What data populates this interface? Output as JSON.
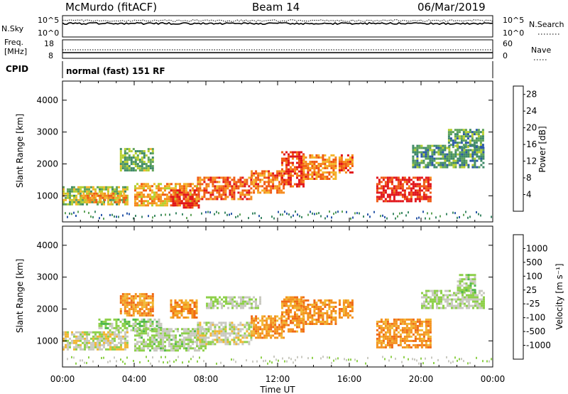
{
  "header": {
    "station": "McMurdo (fitACF)",
    "beam": "Beam 14",
    "date": "06/Mar/2019"
  },
  "noise_panel": {
    "left_label": "N.Sky",
    "right_label": "N.Search",
    "ticks": [
      "10^5",
      "10^0"
    ],
    "right_ticks": [
      "10^5",
      "10^0"
    ]
  },
  "freq_panel": {
    "left_label_1": "Freq.",
    "left_label_2": "[MHz]",
    "left_ticks": [
      "18",
      "8"
    ],
    "right_ticks": [
      "60",
      "0"
    ],
    "right_label": "Nave"
  },
  "cpid_panel": {
    "label": "CPID",
    "text": "normal (fast) 151 RF"
  },
  "power_panel": {
    "ylabel": "Slant Range [km]",
    "yticks": [
      "1000",
      "2000",
      "3000",
      "4000"
    ],
    "colorbar_label": "Power [dB]",
    "colorbar_ticks": [
      "4",
      "8",
      "12",
      "16",
      "20",
      "24",
      "28"
    ],
    "colorbar_colors": [
      "#1a2bdc",
      "#2a57a8",
      "#3f8a68",
      "#5fa35a",
      "#b6cf2e",
      "#f4b52b",
      "#f58a1d",
      "#f05a14",
      "#e1151a"
    ]
  },
  "velocity_panel": {
    "ylabel": "Slant Range [km]",
    "yticks": [
      "1000",
      "2000",
      "3000",
      "4000"
    ],
    "colorbar_label": "Velocity [m s⁻¹]",
    "colorbar_ticks": [
      "1000",
      "500",
      "100",
      "25",
      "-25",
      "-100",
      "-500",
      "-1000"
    ],
    "colorbar_colors": [
      "#2338c4",
      "#2a6da0",
      "#2f8e5c",
      "#4fb84c",
      "#8ed04a",
      "#c9c9c0",
      "#f1b733",
      "#f4921e",
      "#ef6a16",
      "#e2151b"
    ]
  },
  "x_axis": {
    "title": "Time UT",
    "tick_labels": [
      "00:00",
      "04:00",
      "08:00",
      "12:00",
      "16:00",
      "20:00",
      "00:00"
    ]
  },
  "chart_data": [
    {
      "type": "heatmap",
      "title": "Power [dB]",
      "xlabel": "Time UT",
      "ylabel": "Slant Range [km]",
      "xlim_hours": [
        0,
        24
      ],
      "ylim": [
        180,
        4600
      ],
      "value_range": [
        0,
        30
      ],
      "regions": [
        {
          "t": [
            0.0,
            3.6
          ],
          "r": [
            700,
            1300
          ],
          "v": 14
        },
        {
          "t": [
            1.0,
            3.5
          ],
          "r": [
            800,
            1100
          ],
          "v": 20
        },
        {
          "t": [
            3.2,
            5.0
          ],
          "r": [
            1800,
            2500
          ],
          "v": 12
        },
        {
          "t": [
            4.0,
            7.5
          ],
          "r": [
            700,
            1400
          ],
          "v": 20
        },
        {
          "t": [
            6.0,
            7.6
          ],
          "r": [
            600,
            1200
          ],
          "v": 28
        },
        {
          "t": [
            7.5,
            10.5
          ],
          "r": [
            900,
            1600
          ],
          "v": 24
        },
        {
          "t": [
            10.5,
            12.4
          ],
          "r": [
            1100,
            1800
          ],
          "v": 22
        },
        {
          "t": [
            12.2,
            13.5
          ],
          "r": [
            1300,
            2400
          ],
          "v": 26
        },
        {
          "t": [
            13.4,
            15.2
          ],
          "r": [
            1500,
            2300
          ],
          "v": 22
        },
        {
          "t": [
            15.4,
            16.2
          ],
          "r": [
            1700,
            2300
          ],
          "v": 24
        },
        {
          "t": [
            17.5,
            20.5
          ],
          "r": [
            800,
            1600
          ],
          "v": 28
        },
        {
          "t": [
            19.5,
            23.5
          ],
          "r": [
            1900,
            2600
          ],
          "v": 10
        },
        {
          "t": [
            21.5,
            23.5
          ],
          "r": [
            2500,
            3100
          ],
          "v": 10
        }
      ]
    },
    {
      "type": "heatmap",
      "title": "Velocity [m s⁻¹]",
      "xlabel": "Time UT",
      "ylabel": "Slant Range [km]",
      "xlim_hours": [
        0,
        24
      ],
      "ylim": [
        180,
        4600
      ],
      "value_range": [
        -1000,
        1000
      ],
      "regions": [
        {
          "t": [
            0.0,
            3.6
          ],
          "r": [
            700,
            1300
          ],
          "v": -100
        },
        {
          "t": [
            2.0,
            5.5
          ],
          "r": [
            1300,
            1700
          ],
          "v": 100
        },
        {
          "t": [
            3.2,
            5.0
          ],
          "r": [
            1800,
            2500
          ],
          "v": -500
        },
        {
          "t": [
            4.0,
            8.0
          ],
          "r": [
            700,
            1400
          ],
          "v": 25
        },
        {
          "t": [
            6.0,
            7.5
          ],
          "r": [
            1700,
            2300
          ],
          "v": -500
        },
        {
          "t": [
            7.5,
            10.5
          ],
          "r": [
            900,
            1600
          ],
          "v": -100
        },
        {
          "t": [
            8.0,
            11.0
          ],
          "r": [
            2000,
            2400
          ],
          "v": 0
        },
        {
          "t": [
            10.5,
            12.4
          ],
          "r": [
            1100,
            1800
          ],
          "v": -500
        },
        {
          "t": [
            12.2,
            13.5
          ],
          "r": [
            1300,
            2400
          ],
          "v": -500
        },
        {
          "t": [
            13.4,
            15.2
          ],
          "r": [
            1500,
            2300
          ],
          "v": -500
        },
        {
          "t": [
            15.4,
            16.2
          ],
          "r": [
            1700,
            2300
          ],
          "v": -500
        },
        {
          "t": [
            17.5,
            20.5
          ],
          "r": [
            800,
            1700
          ],
          "v": -500
        },
        {
          "t": [
            20.0,
            23.5
          ],
          "r": [
            2000,
            2600
          ],
          "v": 0
        },
        {
          "t": [
            22.0,
            23.0
          ],
          "r": [
            2500,
            3100
          ],
          "v": 100
        }
      ]
    }
  ]
}
